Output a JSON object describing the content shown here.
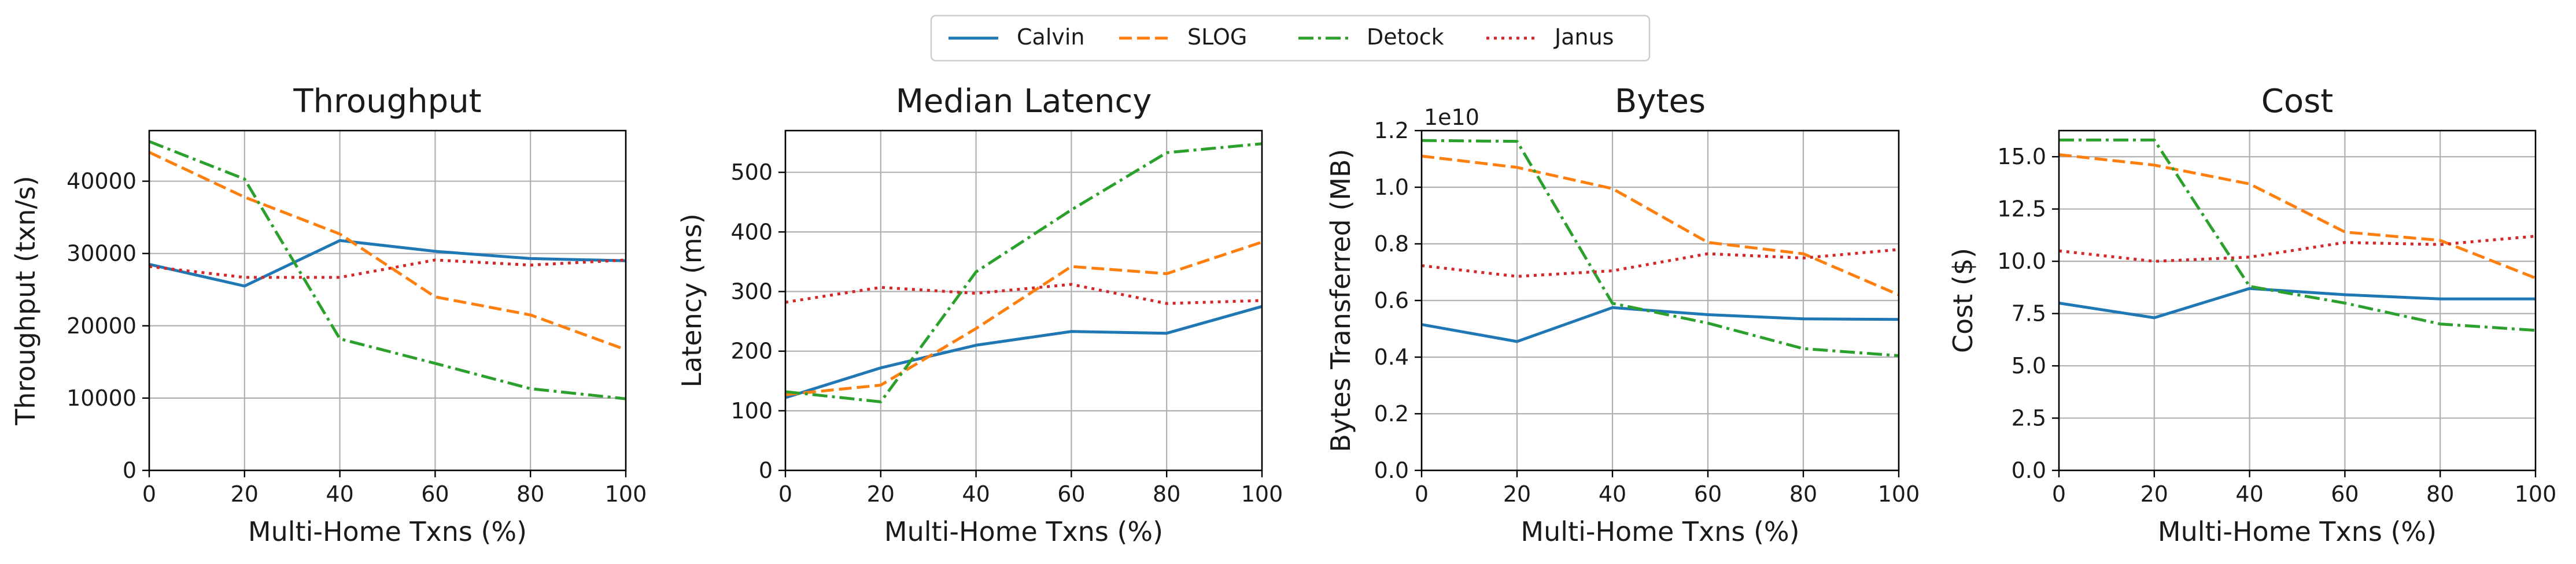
{
  "legend": [
    {
      "name": "Calvin",
      "color": "#1f77b4",
      "dash": "solid"
    },
    {
      "name": "SLOG",
      "color": "#ff7f0e",
      "dash": "dashed"
    },
    {
      "name": "Detock",
      "color": "#2ca02c",
      "dash": "dashdot"
    },
    {
      "name": "Janus",
      "color": "#d62728",
      "dash": "dotted"
    }
  ],
  "chart_data": [
    {
      "type": "line",
      "title": "Throughput",
      "xlabel": "Multi-Home Txns (%)",
      "ylabel": "Throughput (txn/s)",
      "offset_label": "",
      "x": [
        0,
        20,
        40,
        60,
        80,
        100
      ],
      "xlim": [
        0,
        100
      ],
      "ylim": [
        0,
        47000
      ],
      "xticks": [
        0,
        20,
        40,
        60,
        80,
        100
      ],
      "yticks": [
        0,
        10000,
        20000,
        30000,
        40000
      ],
      "ytick_labels": [
        "0",
        "10000",
        "20000",
        "30000",
        "40000"
      ],
      "grid": true,
      "series": [
        {
          "name": "Calvin",
          "values": [
            28500,
            25500,
            31800,
            30300,
            29300,
            29000
          ]
        },
        {
          "name": "SLOG",
          "values": [
            44000,
            37800,
            32700,
            24000,
            21500,
            16700
          ]
        },
        {
          "name": "Detock",
          "values": [
            45500,
            40300,
            18200,
            14800,
            11300,
            9900
          ]
        },
        {
          "name": "Janus",
          "values": [
            28200,
            26700,
            26700,
            29100,
            28400,
            29100
          ]
        }
      ]
    },
    {
      "type": "line",
      "title": "Median Latency",
      "xlabel": "Multi-Home Txns (%)",
      "ylabel": "Latency (ms)",
      "offset_label": "",
      "x": [
        0,
        20,
        40,
        60,
        80,
        100
      ],
      "xlim": [
        0,
        100
      ],
      "ylim": [
        0,
        570
      ],
      "xticks": [
        0,
        20,
        40,
        60,
        80,
        100
      ],
      "yticks": [
        0,
        100,
        200,
        300,
        400,
        500
      ],
      "ytick_labels": [
        "0",
        "100",
        "200",
        "300",
        "400",
        "500"
      ],
      "grid": true,
      "series": [
        {
          "name": "Calvin",
          "values": [
            122,
            172,
            210,
            233,
            230,
            275
          ]
        },
        {
          "name": "SLOG",
          "values": [
            127,
            143,
            238,
            342,
            330,
            383
          ]
        },
        {
          "name": "Detock",
          "values": [
            132,
            115,
            333,
            437,
            533,
            548
          ]
        },
        {
          "name": "Janus",
          "values": [
            282,
            307,
            297,
            312,
            280,
            285
          ]
        }
      ]
    },
    {
      "type": "line",
      "title": "Bytes",
      "xlabel": "Multi-Home Txns (%)",
      "ylabel": "Bytes Transferred (MB)",
      "offset_label": "1e10",
      "x": [
        0,
        20,
        40,
        60,
        80,
        100
      ],
      "xlim": [
        0,
        100
      ],
      "ylim": [
        0,
        1.2
      ],
      "xticks": [
        0,
        20,
        40,
        60,
        80,
        100
      ],
      "yticks": [
        0,
        0.2,
        0.4,
        0.6,
        0.8,
        1.0,
        1.2
      ],
      "ytick_labels": [
        "0.0",
        "0.2",
        "0.4",
        "0.6",
        "0.8",
        "1.0",
        "1.2"
      ],
      "grid": true,
      "series": [
        {
          "name": "Calvin",
          "values": [
            0.515,
            0.455,
            0.575,
            0.55,
            0.535,
            0.533
          ]
        },
        {
          "name": "SLOG",
          "values": [
            1.11,
            1.07,
            0.995,
            0.805,
            0.765,
            0.62
          ]
        },
        {
          "name": "Detock",
          "values": [
            1.165,
            1.162,
            0.59,
            0.52,
            0.43,
            0.405
          ]
        },
        {
          "name": "Janus",
          "values": [
            0.723,
            0.685,
            0.705,
            0.765,
            0.75,
            0.78
          ]
        }
      ]
    },
    {
      "type": "line",
      "title": "Cost",
      "xlabel": "Multi-Home Txns (%)",
      "ylabel": "Cost ($)",
      "offset_label": "",
      "x": [
        0,
        20,
        40,
        60,
        80,
        100
      ],
      "xlim": [
        0,
        100
      ],
      "ylim": [
        0,
        16.25
      ],
      "xticks": [
        0,
        20,
        40,
        60,
        80,
        100
      ],
      "yticks": [
        0,
        2.5,
        5.0,
        7.5,
        10.0,
        12.5,
        15.0
      ],
      "ytick_labels": [
        "0.0",
        "2.5",
        "5.0",
        "7.5",
        "10.0",
        "12.5",
        "15.0"
      ],
      "grid": true,
      "series": [
        {
          "name": "Calvin",
          "values": [
            8.0,
            7.3,
            8.7,
            8.4,
            8.2,
            8.2
          ]
        },
        {
          "name": "SLOG",
          "values": [
            15.1,
            14.6,
            13.7,
            11.4,
            11.0,
            9.2
          ]
        },
        {
          "name": "Detock",
          "values": [
            15.8,
            15.8,
            8.8,
            8.0,
            7.0,
            6.7
          ]
        },
        {
          "name": "Janus",
          "values": [
            10.5,
            10.0,
            10.2,
            10.9,
            10.8,
            11.2
          ]
        }
      ]
    }
  ]
}
